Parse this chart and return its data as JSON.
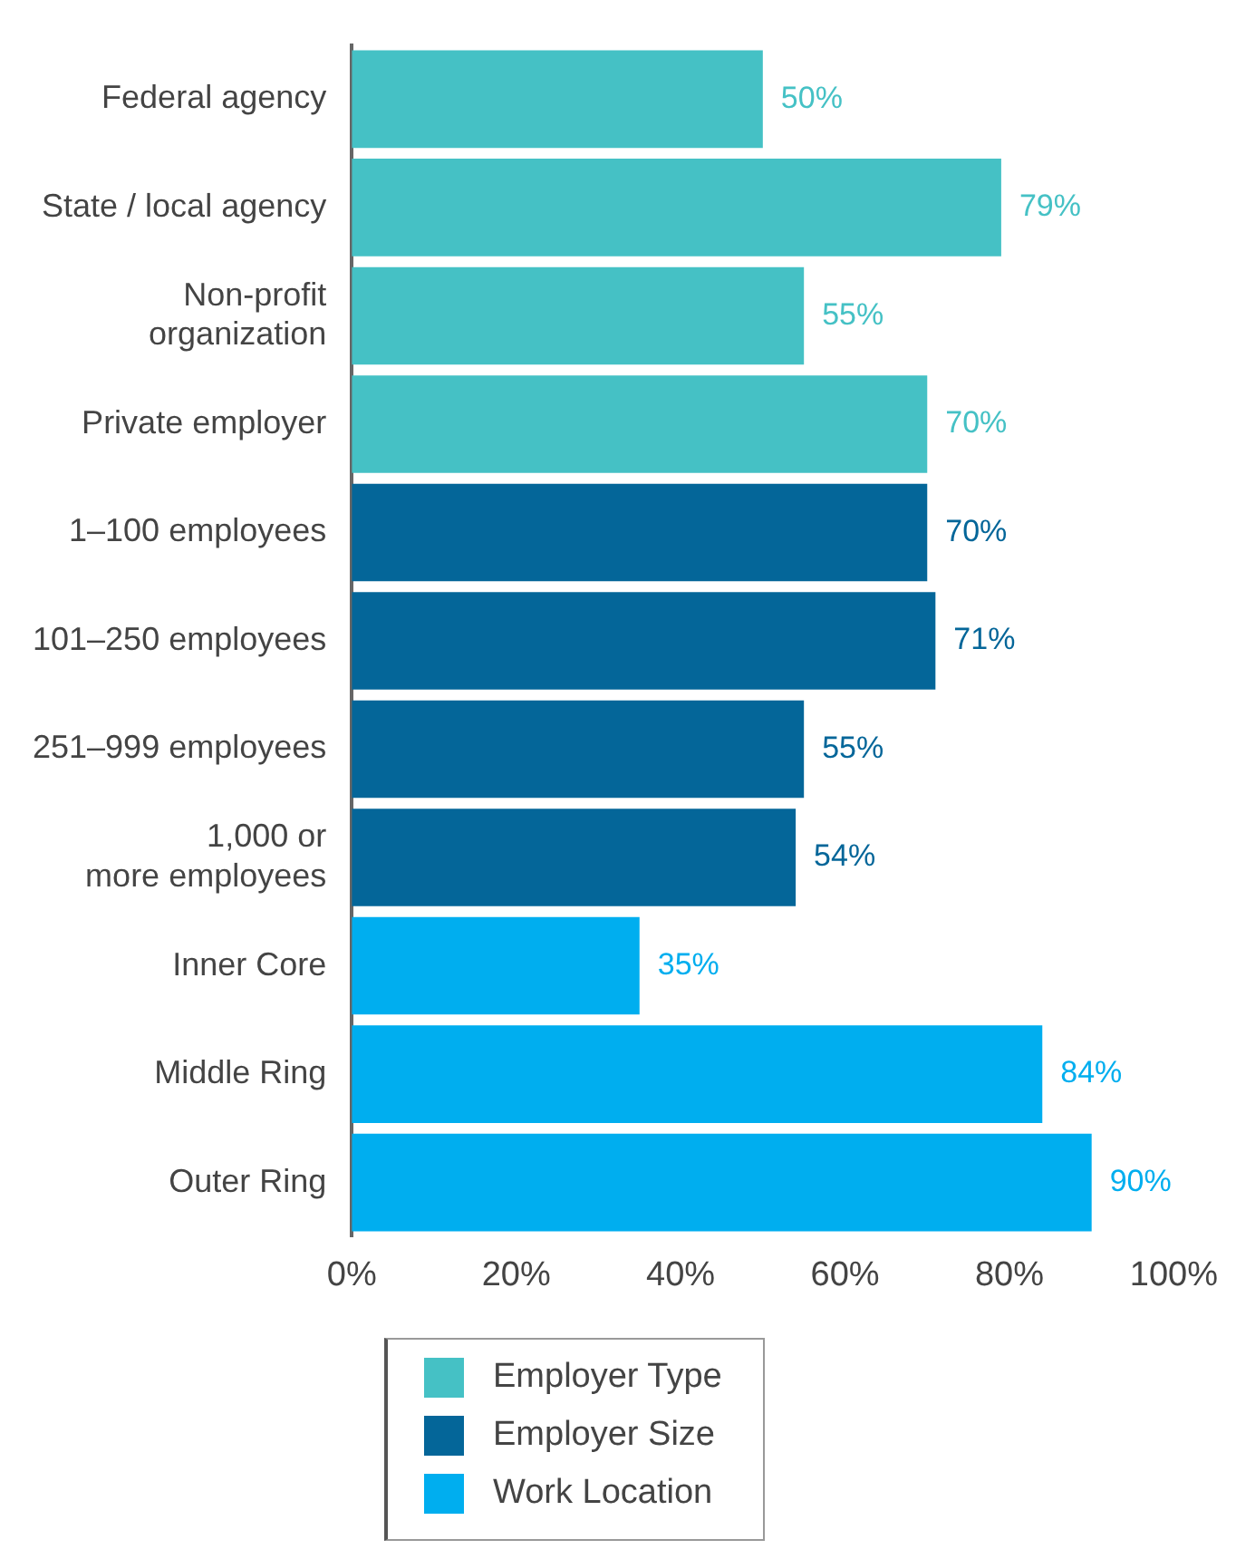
{
  "chart_data": {
    "type": "bar",
    "orientation": "horizontal",
    "legend": "bottom left",
    "categories": [
      "Federal agency",
      "State / local agency",
      "Non-profit\norganization",
      "Private employer",
      "1–100 employees",
      "101–250 employees",
      "251–999 employees",
      "1,000 or\nmore employees",
      "Inner Core",
      "Middle Ring",
      "Outer Ring"
    ],
    "series": [
      {
        "name": "Employer Type",
        "color": "#45c1c5",
        "values": [
          50,
          79,
          55,
          70,
          null,
          null,
          null,
          null,
          null,
          null,
          null
        ],
        "value_labels": [
          "50%",
          "79%",
          "55%",
          "70%",
          null,
          null,
          null,
          null,
          null,
          null,
          null
        ]
      },
      {
        "name": "Employer Size",
        "color": "#046699",
        "values": [
          null,
          null,
          null,
          null,
          70,
          71,
          55,
          54,
          null,
          null,
          null
        ],
        "value_labels": [
          null,
          null,
          null,
          null,
          "70%",
          "71%",
          "55%",
          "54%",
          null,
          null,
          null
        ]
      },
      {
        "name": "Work Location",
        "color": "#00aeef",
        "values": [
          null,
          null,
          null,
          null,
          null,
          null,
          null,
          null,
          35,
          84,
          90
        ],
        "value_labels": [
          null,
          null,
          null,
          null,
          null,
          null,
          null,
          null,
          "35%",
          "84%",
          "90%"
        ]
      }
    ],
    "xlim": [
      0,
      100
    ],
    "xticks": [
      {
        "value": 0,
        "label": "0%"
      },
      {
        "value": 20,
        "label": "20%"
      },
      {
        "value": 40,
        "label": "40%"
      },
      {
        "value": 60,
        "label": "60%"
      },
      {
        "value": 80,
        "label": "80%"
      },
      {
        "value": 100,
        "label": "100%"
      }
    ],
    "grid": false
  }
}
